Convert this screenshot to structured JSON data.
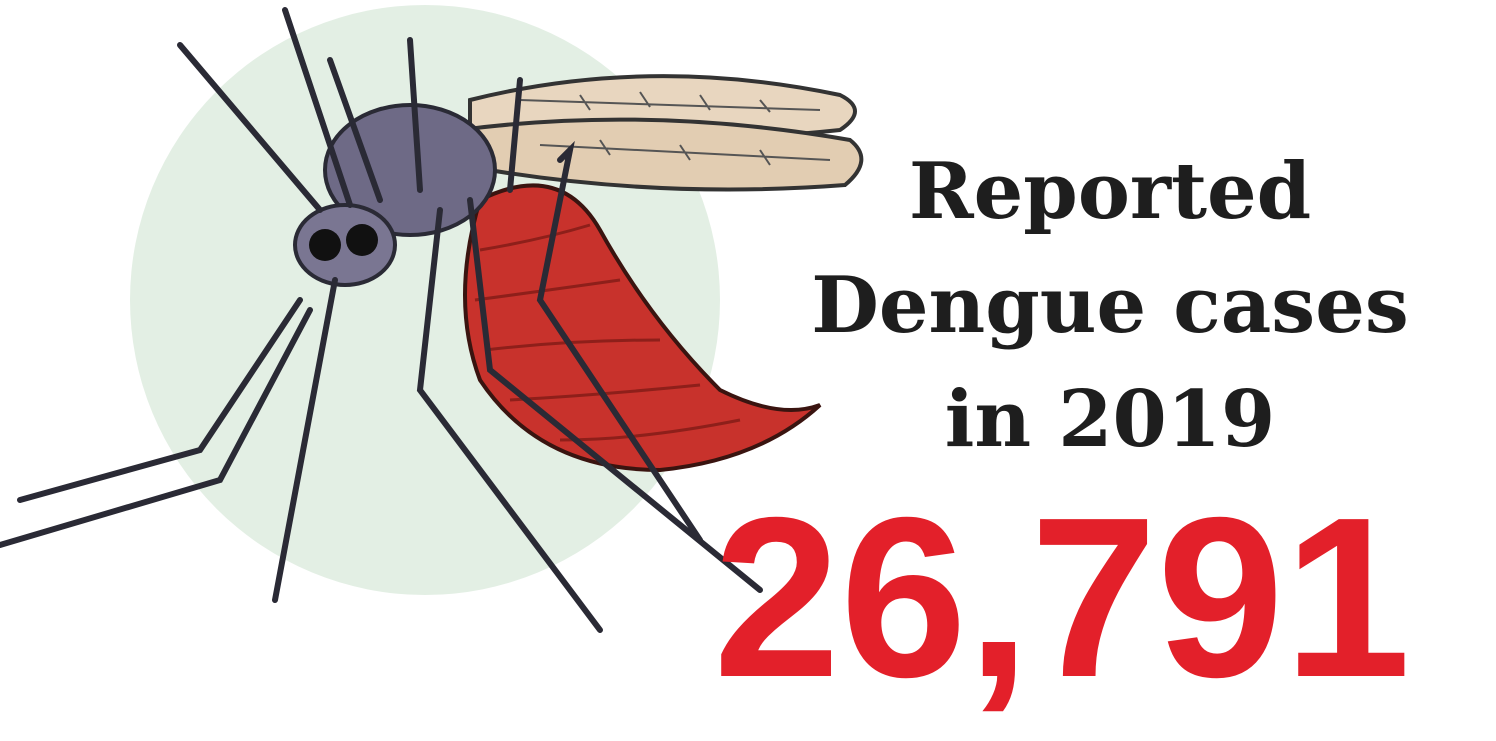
{
  "headline": {
    "lines": [
      "Reported",
      "Dengue cases",
      "in 2019"
    ]
  },
  "stat": "26,791"
}
